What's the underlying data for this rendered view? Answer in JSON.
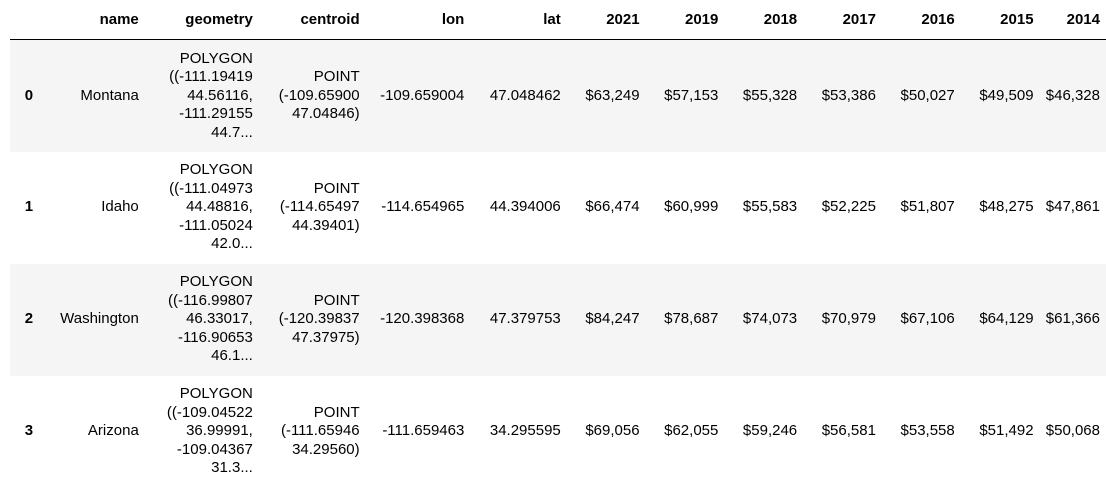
{
  "columns": [
    "",
    "name",
    "geometry",
    "centroid",
    "lon",
    "lat",
    "2021",
    "2019",
    "2018",
    "2017",
    "2016",
    "2015",
    "2014"
  ],
  "rows": [
    {
      "index": "0",
      "name": "Montana",
      "geometry": "POLYGON\n((-111.19419\n44.56116,\n-111.29155\n44.7...",
      "centroid": "POINT\n(-109.65900\n47.04846)",
      "lon": "-109.659004",
      "lat": "47.048462",
      "y2021": "$63,249",
      "y2019": "$57,153",
      "y2018": "$55,328",
      "y2017": "$53,386",
      "y2016": "$50,027",
      "y2015": "$49,509",
      "y2014": "$46,328"
    },
    {
      "index": "1",
      "name": "Idaho",
      "geometry": "POLYGON\n((-111.04973\n44.48816,\n-111.05024\n42.0...",
      "centroid": "POINT\n(-114.65497\n44.39401)",
      "lon": "-114.654965",
      "lat": "44.394006",
      "y2021": "$66,474",
      "y2019": "$60,999",
      "y2018": "$55,583",
      "y2017": "$52,225",
      "y2016": "$51,807",
      "y2015": "$48,275",
      "y2014": "$47,861"
    },
    {
      "index": "2",
      "name": "Washington",
      "geometry": "POLYGON\n((-116.99807\n46.33017,\n-116.90653\n46.1...",
      "centroid": "POINT\n(-120.39837\n47.37975)",
      "lon": "-120.398368",
      "lat": "47.379753",
      "y2021": "$84,247",
      "y2019": "$78,687",
      "y2018": "$74,073",
      "y2017": "$70,979",
      "y2016": "$67,106",
      "y2015": "$64,129",
      "y2014": "$61,366"
    },
    {
      "index": "3",
      "name": "Arizona",
      "geometry": "POLYGON\n((-109.04522\n36.99991,\n-109.04367\n31.3...",
      "centroid": "POINT\n(-111.65946\n34.29560)",
      "lon": "-111.659463",
      "lat": "34.295595",
      "y2021": "$69,056",
      "y2019": "$62,055",
      "y2018": "$59,246",
      "y2017": "$56,581",
      "y2016": "$53,558",
      "y2015": "$51,492",
      "y2014": "$50,068"
    }
  ],
  "colors": {
    "stripe": "#f5f5f5",
    "header_rule": "#000000",
    "text": "#000000"
  }
}
